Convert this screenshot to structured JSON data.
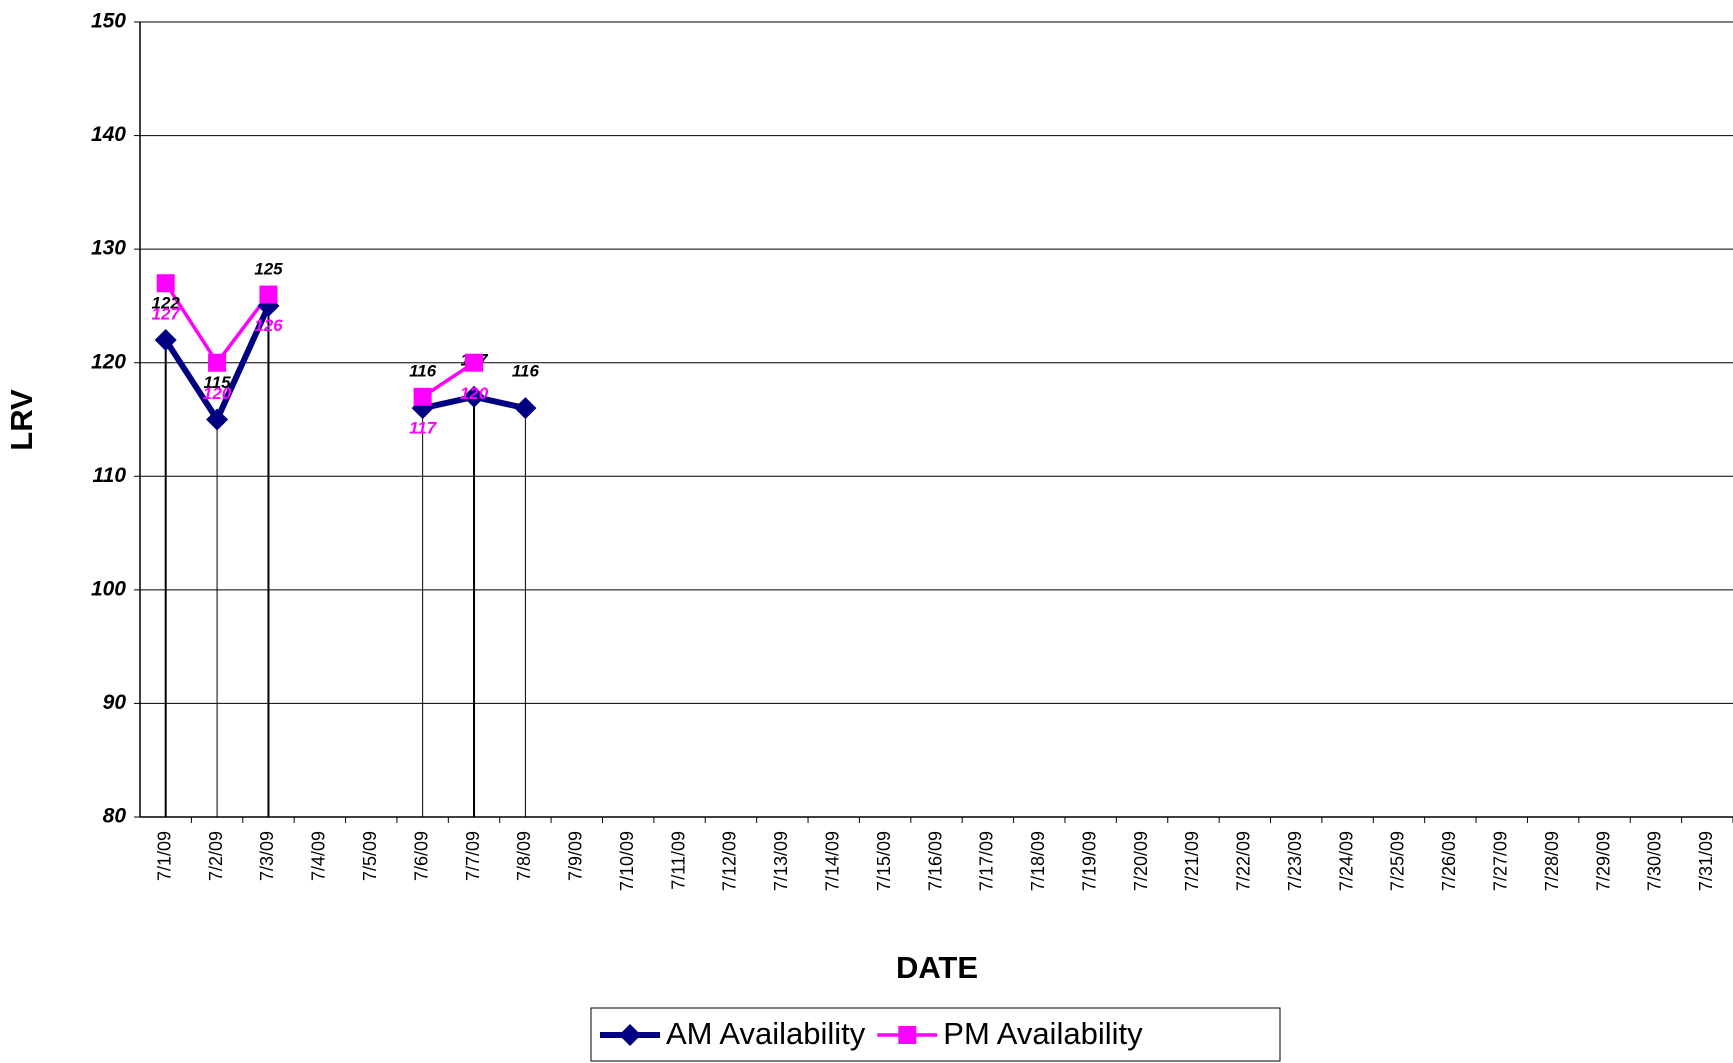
{
  "chart_data": {
    "type": "line",
    "x_label": "DATE",
    "y_label": "LRV",
    "categories": [
      "7/1/09",
      "7/2/09",
      "7/3/09",
      "7/4/09",
      "7/5/09",
      "7/6/09",
      "7/7/09",
      "7/8/09",
      "7/9/09",
      "7/10/09",
      "7/11/09",
      "7/12/09",
      "7/13/09",
      "7/14/09",
      "7/15/09",
      "7/16/09",
      "7/17/09",
      "7/18/09",
      "7/19/09",
      "7/20/09",
      "7/21/09",
      "7/22/09",
      "7/23/09",
      "7/24/09",
      "7/25/09",
      "7/26/09",
      "7/27/09",
      "7/28/09",
      "7/29/09",
      "7/30/09",
      "7/31/09"
    ],
    "series": [
      {
        "name": "AM Availability",
        "color": "#000080",
        "values": [
          122,
          115,
          125,
          null,
          null,
          116,
          117,
          116,
          null,
          null,
          null,
          null,
          null,
          null,
          null,
          null,
          null,
          null,
          null,
          null,
          null,
          null,
          null,
          null,
          null,
          null,
          null,
          null,
          null,
          null,
          null
        ]
      },
      {
        "name": "PM Availability",
        "color": "#ff00ff",
        "values": [
          127,
          120,
          126,
          null,
          null,
          117,
          120,
          null,
          null,
          null,
          null,
          null,
          null,
          null,
          null,
          null,
          null,
          null,
          null,
          null,
          null,
          null,
          null,
          null,
          null,
          null,
          null,
          null,
          null,
          null,
          null
        ]
      }
    ],
    "ylim": [
      80,
      150
    ],
    "yticks": [
      80,
      90,
      100,
      110,
      120,
      130,
      140,
      150
    ],
    "grid": true,
    "legend": "bottom"
  }
}
